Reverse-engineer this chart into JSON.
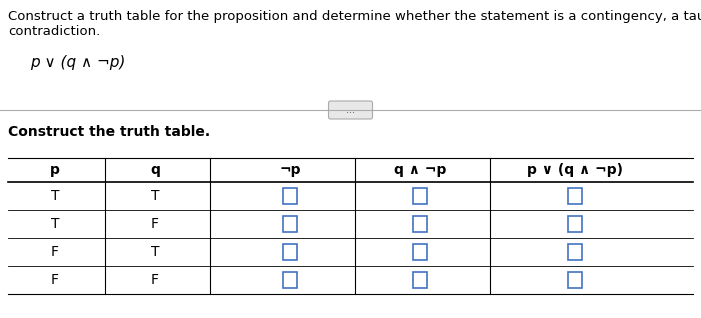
{
  "title_text": "Construct a truth table for the proposition and determine whether the statement is a contingency, a tautology, or a\ncontradiction.",
  "proposition": "p ∨ (q ∧ ¬p)",
  "subtitle": "Construct the truth table.",
  "col_headers": [
    "p",
    "q",
    "¬p",
    "q ∧ ¬p",
    "p ∨ (q ∧ ¬p)"
  ],
  "p_vals": [
    "T",
    "T",
    "F",
    "F"
  ],
  "q_vals": [
    "T",
    "F",
    "T",
    "F"
  ],
  "bg_color": "#ffffff",
  "text_color": "#000000",
  "box_color": "#4472c4",
  "sep_color": "#aaaaaa",
  "line_color": "#000000",
  "dots_button_color": "#e8e8e8",
  "title_fontsize": 9.5,
  "proposition_fontsize": 11,
  "subtitle_fontsize": 10,
  "table_fontsize": 10
}
